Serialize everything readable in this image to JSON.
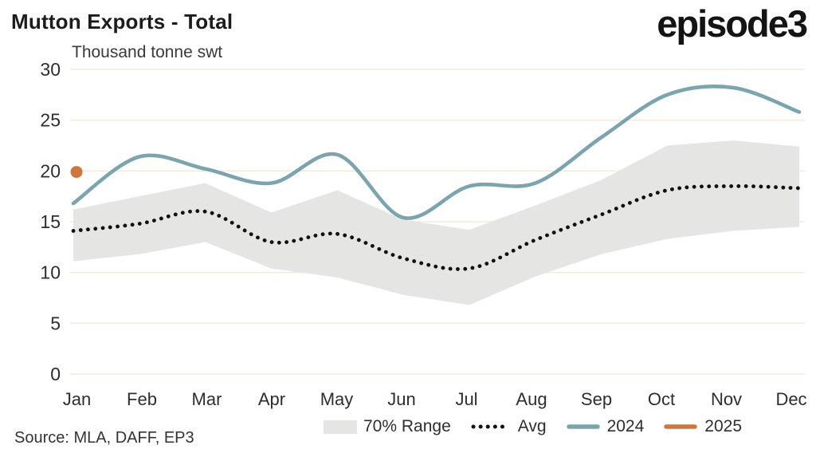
{
  "header": {
    "title": "Mutton Exports - Total",
    "subtitle": "Thousand tonne swt",
    "logo": "episode3"
  },
  "footer": {
    "source": "Source: MLA, DAFF, EP3"
  },
  "colors": {
    "teal": "#7AA5AE",
    "orange": "#CF763C",
    "band": "#E5E5E3",
    "dot_line": "#111111",
    "grid": "#F1ECDB",
    "axis_text": "#2E2E2E"
  },
  "legend": {
    "items": [
      {
        "label": "70% Range",
        "swatch": "band"
      },
      {
        "label": "Avg",
        "swatch": "dotted"
      },
      {
        "label": "2024",
        "swatch": "teal-line"
      },
      {
        "label": "2025",
        "swatch": "orange-line"
      }
    ]
  },
  "chart_data": {
    "type": "line",
    "title": "Mutton Exports - Total",
    "ylabel": "Thousand tonne swt",
    "xlabel": "",
    "ylim": [
      0,
      30
    ],
    "yticks": [
      0,
      5,
      10,
      15,
      20,
      25,
      30
    ],
    "grid": true,
    "legend_position": "bottom",
    "categories": [
      "Jan",
      "Feb",
      "Mar",
      "Apr",
      "May",
      "Jun",
      "Jul",
      "Aug",
      "Sep",
      "Oct",
      "Nov",
      "Dec"
    ],
    "series": [
      {
        "name": "70% Range",
        "type": "band",
        "color": "#E5E5E3",
        "upper": [
          16.2,
          17.5,
          18.8,
          15.9,
          18.1,
          15.2,
          14.2,
          16.6,
          19.1,
          22.5,
          23.0,
          22.4
        ],
        "lower": [
          11.1,
          11.8,
          13.0,
          10.4,
          9.5,
          7.8,
          6.8,
          9.6,
          11.8,
          13.3,
          14.1,
          14.5
        ]
      },
      {
        "name": "Avg",
        "type": "dotted-line",
        "color": "#111111",
        "values": [
          14.1,
          14.8,
          16.0,
          13.0,
          13.8,
          11.4,
          10.4,
          13.2,
          15.7,
          18.1,
          18.5,
          18.3
        ]
      },
      {
        "name": "2024",
        "type": "line",
        "color": "#7AA5AE",
        "values": [
          16.8,
          21.4,
          20.2,
          18.8,
          21.6,
          15.4,
          18.5,
          18.8,
          23.3,
          27.5,
          28.2,
          25.8
        ]
      },
      {
        "name": "2025",
        "type": "point",
        "color": "#CF763C",
        "values": [
          19.9,
          null,
          null,
          null,
          null,
          null,
          null,
          null,
          null,
          null,
          null,
          null
        ]
      }
    ]
  }
}
